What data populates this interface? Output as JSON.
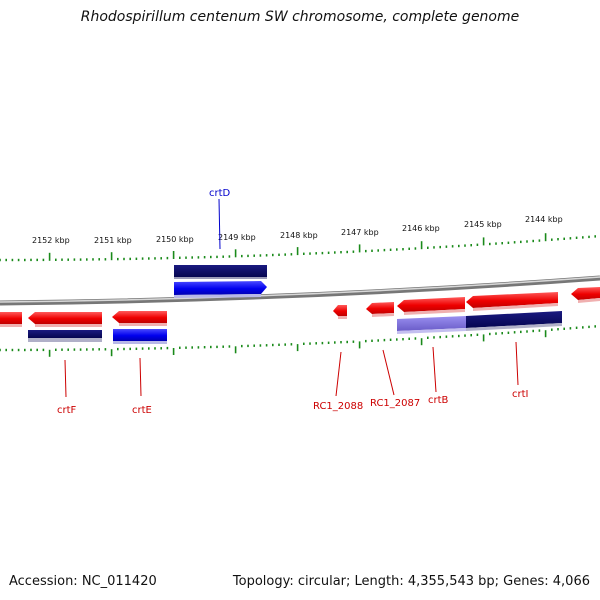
{
  "title": "Rhodospirillum centenum SW chromosome, complete genome",
  "footer": {
    "accession": "Accession: NC_011420",
    "stats": "Topology: circular; Length: 4,355,543 bp; Genes: 4,066"
  },
  "scale_ticks": [
    "2152 kbp",
    "2151 kbp",
    "2150 kbp",
    "2149 kbp",
    "2148 kbp",
    "2147 kbp",
    "2146 kbp",
    "2145 kbp",
    "2144 kbp"
  ],
  "gene_labels": {
    "crtD": "crtD",
    "crtF": "crtF",
    "crtE": "crtE",
    "RC1_2088": "RC1_2088",
    "RC1_2087": "RC1_2087",
    "crtB": "crtB",
    "crtI": "crtI"
  },
  "colors": {
    "reverse_strand": "#ff0000",
    "forward_strand": "#0000ff",
    "dark_feature": "#0a0a6e",
    "light_feature": "#7b6fd8",
    "backbone": "#8a8a8a",
    "tick_green": "#1a8a1a",
    "label_red": "#cc0000",
    "label_blue": "#0000cc"
  }
}
